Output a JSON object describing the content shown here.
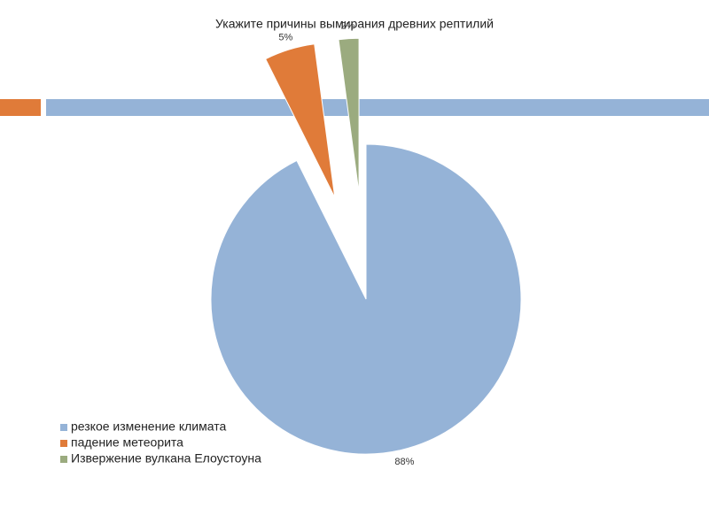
{
  "chart_data": {
    "type": "pie",
    "title": "Укажите причины вымирания древних рептилий",
    "categories": [
      "резкое изменение климата",
      "падение метеорита",
      "Извержение вулкана Елоустоуна"
    ],
    "values": [
      88,
      5,
      2
    ],
    "value_labels": [
      "88%",
      "5%",
      "2%"
    ],
    "colors": [
      "#95b3d7",
      "#e07b39",
      "#9bab7f"
    ]
  }
}
